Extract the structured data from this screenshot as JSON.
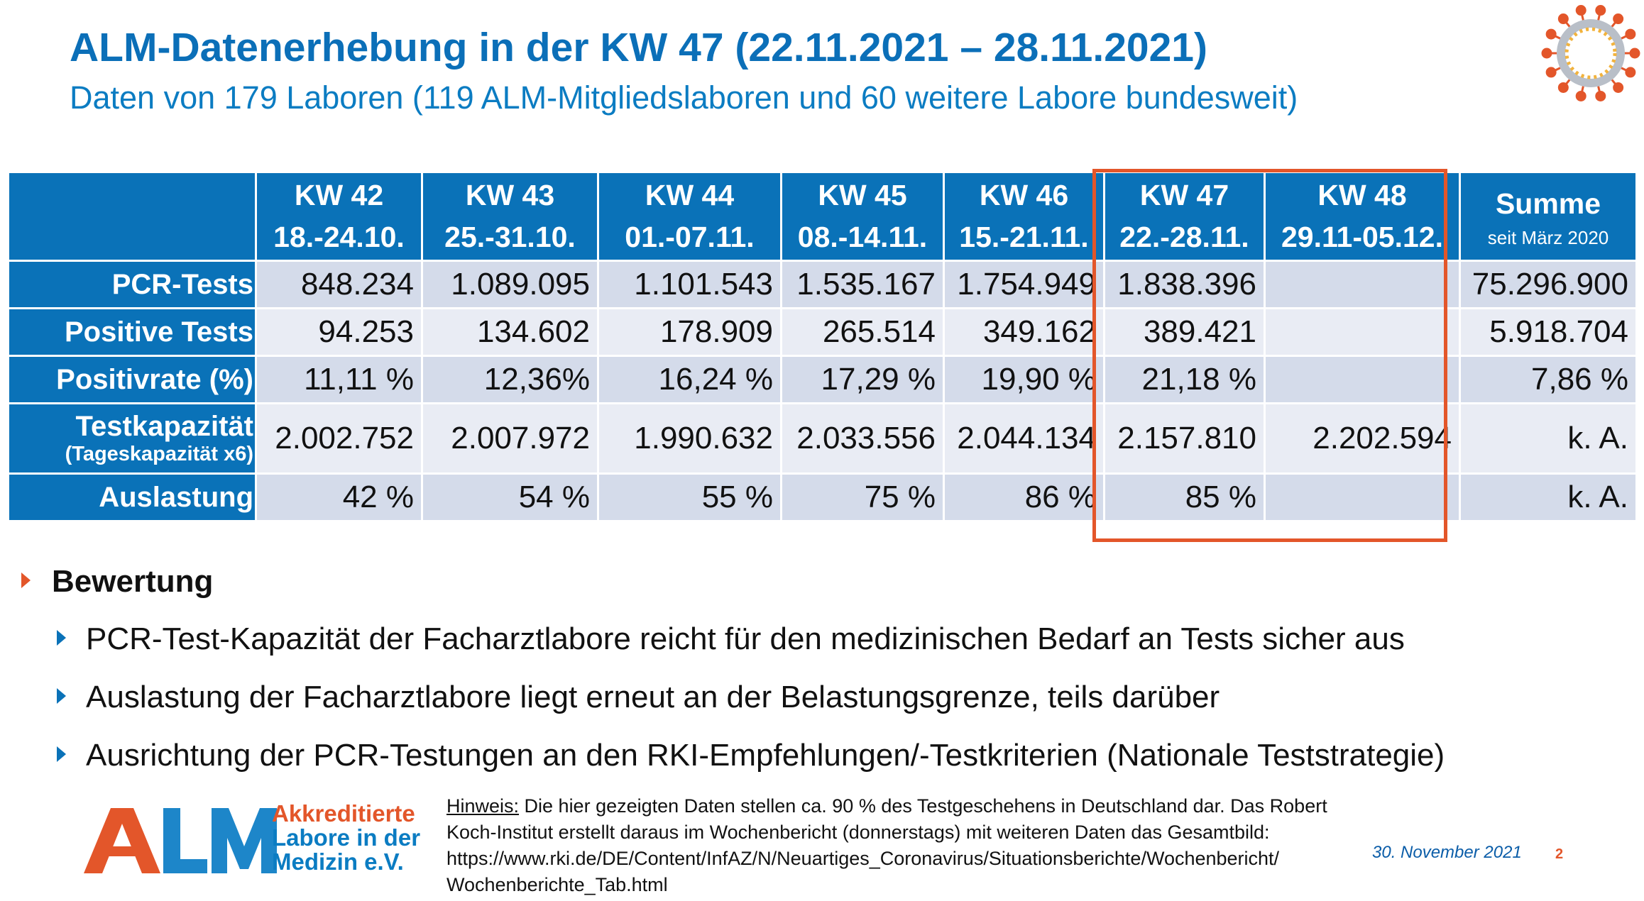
{
  "header": {
    "title": "ALM-Datenerhebung in der KW 47 (22.11.2021 – 28.11.2021)",
    "subtitle": "Daten von 179 Laboren (119 ALM-Mitgliedslaboren und 60 weitere Labore bundesweit)"
  },
  "table": {
    "columns": [
      {
        "kw": "KW 42",
        "range": "18.-24.10."
      },
      {
        "kw": "KW 43",
        "range": "25.-31.10."
      },
      {
        "kw": "KW 44",
        "range": "01.-07.11."
      },
      {
        "kw": "KW 45",
        "range": "08.-14.11."
      },
      {
        "kw": "KW 46",
        "range": "15.-21.11."
      },
      {
        "kw": "KW 47",
        "range": "22.-28.11."
      },
      {
        "kw": "KW 48",
        "range": "29.11-05.12."
      }
    ],
    "sum_header": {
      "label": "Summe",
      "sub": "seit März 2020"
    },
    "rows": [
      {
        "label": "PCR-Tests",
        "values": [
          "848.234",
          "1.089.095",
          "1.101.543",
          "1.535.167",
          "1.754.949",
          "1.838.396",
          ""
        ],
        "sum": "75.296.900"
      },
      {
        "label": "Positive Tests",
        "values": [
          "94.253",
          "134.602",
          "178.909",
          "265.514",
          "349.162",
          "389.421",
          ""
        ],
        "sum": "5.918.704"
      },
      {
        "label": "Positivrate (%)",
        "values": [
          "11,11 %",
          "12,36%",
          "16,24 %",
          "17,29 %",
          "19,90 %",
          "21,18 %",
          ""
        ],
        "sum": "7,86 %"
      },
      {
        "label": "Testkapazität",
        "sublabel": "(Tageskapazität x6)",
        "values": [
          "2.002.752",
          "2.007.972",
          "1.990.632",
          "2.033.556",
          "2.044.134",
          "2.157.810",
          "2.202.594"
        ],
        "sum": "k. A."
      },
      {
        "label": "Auslastung",
        "values": [
          "42 %",
          "54 %",
          "55 %",
          "75 %",
          "86 %",
          "85 %",
          ""
        ],
        "sum": "k. A."
      }
    ]
  },
  "bullets": {
    "heading": "Bewertung",
    "items": [
      "PCR-Test-Kapazität der Facharztlabore reicht für den medizinischen Bedarf an Tests sicher aus",
      "Auslastung der Facharztlabore liegt erneut an der Belastungsgrenze, teils darüber",
      "Ausrichtung der PCR-Testungen an den RKI-Empfehlungen/-Testkriterien (Nationale Teststrategie)"
    ]
  },
  "logo": {
    "letters": "ALM",
    "line1": "Akkreditierte",
    "line2": "Labore in der",
    "line3": "Medizin e.V."
  },
  "footer": {
    "hinweis_label": "Hinweis:",
    "hinweis_line1": " Die hier gezeigten Daten stellen ca. 90 % des Testgeschehens in Deutschland dar. Das Robert",
    "hinweis_line2": "Koch-Institut erstellt daraus im Wochenbericht (donnerstags) mit weiteren Daten das Gesamtbild:",
    "hinweis_line3": "https://www.rki.de/DE/Content/InfAZ/N/Neuartiges_Coronavirus/Situationsberichte/Wochenbericht/",
    "hinweis_line4": "Wochenberichte_Tab.html",
    "date": "30. November 2021",
    "page": "2"
  },
  "colors": {
    "header_blue": "#0a72b8",
    "title_blue": "#0b6fb8",
    "highlight_orange": "#e3562a",
    "row_dark": "#d4dbea",
    "row_light": "#e9ecf4"
  },
  "icons": [
    "coronavirus-icon",
    "arrow-bullet-icon"
  ]
}
